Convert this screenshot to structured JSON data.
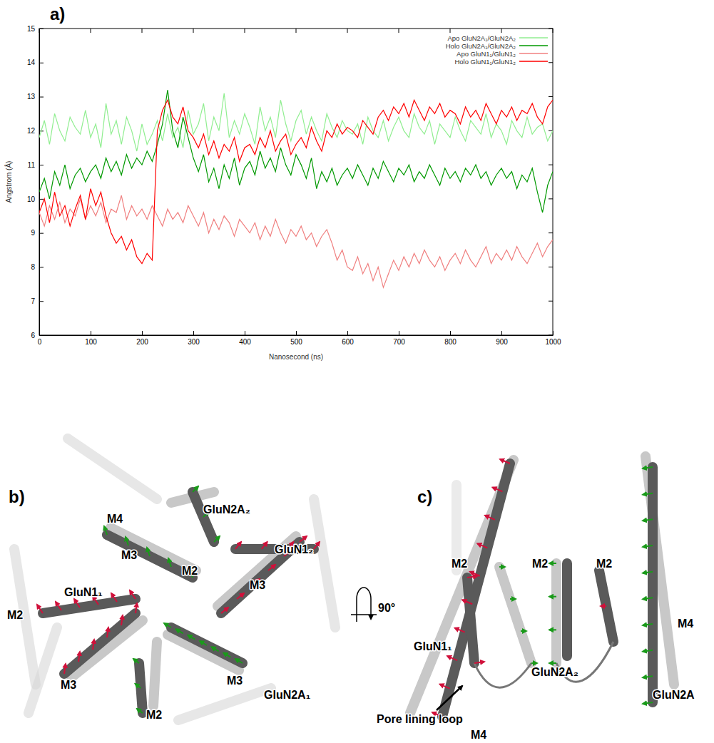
{
  "panels": [
    "a)",
    "b)",
    "c)"
  ],
  "chart_data": {
    "type": "line",
    "x_label": "Nanosecond (ns)",
    "y_label": "Angstrom (Å)",
    "xlim": [
      0,
      1000
    ],
    "xticks": [
      0,
      100,
      200,
      300,
      400,
      500,
      600,
      700,
      800,
      900,
      1000
    ],
    "ylim": [
      6,
      15
    ],
    "yticks": [
      6,
      7,
      8,
      9,
      10,
      11,
      12,
      13,
      14,
      15
    ],
    "legend": "top right",
    "x": [
      0,
      10,
      20,
      30,
      40,
      50,
      60,
      70,
      80,
      90,
      100,
      110,
      120,
      130,
      140,
      150,
      160,
      170,
      180,
      190,
      200,
      210,
      220,
      230,
      240,
      250,
      260,
      270,
      280,
      290,
      300,
      310,
      320,
      330,
      340,
      350,
      360,
      370,
      380,
      390,
      400,
      410,
      420,
      430,
      440,
      450,
      460,
      470,
      480,
      490,
      500,
      510,
      520,
      530,
      540,
      550,
      560,
      570,
      580,
      590,
      600,
      610,
      620,
      630,
      640,
      650,
      660,
      670,
      680,
      690,
      700,
      710,
      720,
      730,
      740,
      750,
      760,
      770,
      780,
      790,
      800,
      810,
      820,
      830,
      840,
      850,
      860,
      870,
      880,
      890,
      900,
      910,
      920,
      930,
      940,
      950,
      960,
      970,
      980,
      990,
      1000
    ],
    "series": [
      {
        "name": "Apo GluN2A₁/GluN2A₂",
        "color": "#90ee90",
        "values": [
          11.8,
          12.3,
          11.6,
          12.5,
          12.0,
          11.7,
          12.4,
          12.1,
          11.9,
          12.6,
          11.8,
          12.2,
          11.5,
          12.8,
          11.9,
          12.3,
          11.6,
          12.4,
          12.0,
          11.4,
          12.2,
          11.6,
          11.9,
          12.3,
          11.7,
          12.5,
          11.8,
          12.1,
          11.5,
          12.6,
          11.9,
          12.2,
          12.8,
          11.7,
          12.4,
          12.0,
          13.1,
          11.8,
          12.3,
          11.9,
          12.5,
          12.1,
          11.6,
          12.7,
          12.0,
          12.4,
          11.8,
          12.9,
          12.2,
          11.7,
          12.3,
          12.6,
          11.9,
          12.4,
          12.0,
          11.7,
          12.5,
          12.1,
          11.8,
          12.3,
          12.0,
          11.9,
          12.2,
          11.6,
          12.4,
          12.0,
          11.8,
          12.3,
          11.7,
          12.1,
          12.4,
          12.0,
          11.8,
          12.5,
          12.1,
          11.9,
          12.3,
          11.6,
          12.2,
          12.0,
          11.8,
          12.4,
          12.0,
          11.7,
          12.3,
          12.1,
          11.9,
          12.5,
          11.8,
          12.2,
          12.0,
          11.6,
          12.3,
          12.0,
          11.8,
          12.4,
          11.9,
          12.1,
          12.2,
          11.7,
          12.0
        ]
      },
      {
        "name": "Holo GluN2A₁/GluN2A₂",
        "color": "#009900",
        "values": [
          10.2,
          10.6,
          10.0,
          10.8,
          10.4,
          11.0,
          10.3,
          10.7,
          10.9,
          10.5,
          10.8,
          11.0,
          10.6,
          11.2,
          10.8,
          11.1,
          10.7,
          11.3,
          10.9,
          11.2,
          11.0,
          11.4,
          11.1,
          11.6,
          12.2,
          13.2,
          12.0,
          11.5,
          12.4,
          11.8,
          11.2,
          10.8,
          11.3,
          10.5,
          10.9,
          10.3,
          11.0,
          10.6,
          11.2,
          10.4,
          10.9,
          11.1,
          10.7,
          11.4,
          10.9,
          11.2,
          10.8,
          11.5,
          11.0,
          10.7,
          11.3,
          11.0,
          10.6,
          11.2,
          10.3,
          10.8,
          10.5,
          10.9,
          10.4,
          10.7,
          10.9,
          10.6,
          11.0,
          10.7,
          10.4,
          10.9,
          10.6,
          11.1,
          10.8,
          10.5,
          10.9,
          10.7,
          11.0,
          10.5,
          10.8,
          10.6,
          11.0,
          10.7,
          10.4,
          10.9,
          10.6,
          10.8,
          10.5,
          10.9,
          10.7,
          11.0,
          10.6,
          10.8,
          10.4,
          10.7,
          10.9,
          10.6,
          10.8,
          10.3,
          10.7,
          10.5,
          10.9,
          10.2,
          9.6,
          10.4,
          10.8
        ]
      },
      {
        "name": "Apo GluN1₁/GluN1₂",
        "color": "#f08080",
        "values": [
          9.6,
          9.2,
          9.8,
          9.4,
          9.9,
          9.3,
          9.7,
          9.5,
          10.0,
          9.4,
          9.8,
          9.5,
          9.9,
          9.3,
          9.7,
          9.6,
          10.1,
          9.4,
          9.8,
          9.5,
          9.7,
          9.4,
          9.8,
          9.5,
          9.2,
          9.7,
          9.4,
          9.6,
          9.3,
          9.8,
          9.5,
          9.2,
          9.6,
          9.0,
          9.4,
          9.1,
          9.5,
          9.3,
          8.9,
          9.4,
          9.2,
          9.0,
          9.3,
          8.8,
          9.2,
          8.9,
          9.4,
          9.0,
          8.7,
          9.1,
          8.9,
          9.2,
          8.8,
          9.0,
          8.6,
          8.9,
          9.1,
          8.7,
          8.2,
          8.5,
          8.0,
          7.9,
          8.3,
          7.8,
          8.1,
          7.6,
          8.0,
          7.4,
          7.8,
          8.2,
          7.9,
          8.3,
          8.0,
          8.4,
          8.1,
          8.5,
          8.2,
          8.0,
          8.3,
          7.9,
          8.2,
          8.4,
          8.1,
          8.5,
          8.2,
          8.0,
          8.3,
          8.6,
          8.1,
          8.4,
          8.2,
          8.5,
          8.2,
          8.6,
          8.3,
          8.1,
          8.4,
          8.7,
          8.3,
          8.6,
          8.8
        ]
      },
      {
        "name": "Holo GluN1₁/GluN1₂",
        "color": "#ff0000",
        "values": [
          9.6,
          10.0,
          9.3,
          10.2,
          9.5,
          9.8,
          9.2,
          9.7,
          10.1,
          9.4,
          10.3,
          9.8,
          10.2,
          9.5,
          9.0,
          8.7,
          8.9,
          8.5,
          8.8,
          8.3,
          8.1,
          8.4,
          8.2,
          12.0,
          12.6,
          12.9,
          12.4,
          12.2,
          12.7,
          12.0,
          11.8,
          11.5,
          11.9,
          11.3,
          11.7,
          11.2,
          11.6,
          11.4,
          11.8,
          11.1,
          11.5,
          11.6,
          11.3,
          11.8,
          11.5,
          12.0,
          11.4,
          11.7,
          11.9,
          11.3,
          11.6,
          11.8,
          11.5,
          12.1,
          11.7,
          11.4,
          12.0,
          11.8,
          12.2,
          11.9,
          12.1,
          12.0,
          11.8,
          12.3,
          12.1,
          11.9,
          12.4,
          12.6,
          12.3,
          12.7,
          12.5,
          12.8,
          12.4,
          12.9,
          12.6,
          12.3,
          12.7,
          12.5,
          12.8,
          12.4,
          12.6,
          12.5,
          12.2,
          12.7,
          12.4,
          12.6,
          12.3,
          12.8,
          12.5,
          12.2,
          12.6,
          12.4,
          12.7,
          12.3,
          12.6,
          12.5,
          12.8,
          12.4,
          12.2,
          12.7,
          12.9
        ]
      }
    ]
  },
  "diagram_b": {
    "labels": [
      "M4",
      "GluN2A₂",
      "GluN1₂",
      "M3",
      "M2",
      "M3",
      "GluN1₁",
      "M2",
      "M3",
      "M3",
      "GluN2A₁",
      "M2"
    ]
  },
  "diagram_c": {
    "labels": [
      "M2",
      "M2",
      "M2",
      "GluN1₁",
      "GluN2A₂",
      "M4",
      "GluN2A",
      "M4"
    ],
    "rotation": "90°",
    "annotation": "Pore lining loop"
  }
}
